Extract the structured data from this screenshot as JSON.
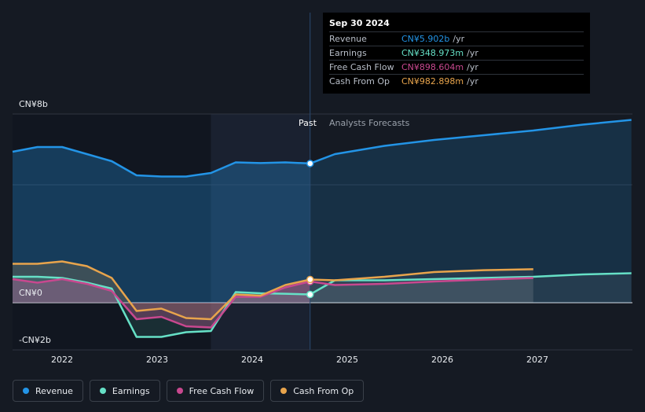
{
  "chart_data": {
    "type": "line",
    "x": [
      2021.75,
      2022.0,
      2022.25,
      2022.5,
      2022.75,
      2023.0,
      2023.25,
      2023.5,
      2023.75,
      2024.0,
      2024.25,
      2024.5,
      2024.75
    ],
    "series": [
      {
        "name": "Revenue",
        "color": "#2394e6",
        "values": [
          6.4,
          6.6,
          6.6,
          6.3,
          6.0,
          5.4,
          5.35,
          5.35,
          5.5,
          5.95,
          5.92,
          5.95,
          5.902
        ]
      },
      {
        "name": "Earnings",
        "color": "#66e0c6",
        "values": [
          1.1,
          1.1,
          1.05,
          0.85,
          0.6,
          -1.45,
          -1.45,
          -1.25,
          -1.2,
          0.45,
          0.4,
          0.38,
          0.349
        ]
      },
      {
        "name": "Free Cash Flow",
        "color": "#c8488f",
        "values": [
          1.0,
          0.85,
          1.0,
          0.8,
          0.5,
          -0.7,
          -0.6,
          -1.0,
          -1.05,
          0.25,
          0.25,
          0.65,
          0.899
        ]
      },
      {
        "name": "Cash From Op",
        "color": "#e8a44c",
        "values": [
          1.65,
          1.65,
          1.75,
          1.55,
          1.05,
          -0.35,
          -0.25,
          -0.65,
          -0.7,
          0.35,
          0.3,
          0.75,
          0.983
        ]
      }
    ],
    "forecast": {
      "x": [
        2024.75,
        2025.0,
        2025.5,
        2026.0,
        2026.5,
        2027.0,
        2027.5,
        2027.99
      ],
      "series": [
        {
          "name": "Revenue",
          "values": [
            5.902,
            6.3,
            6.65,
            6.9,
            7.1,
            7.3,
            7.55,
            7.75
          ]
        },
        {
          "name": "Earnings",
          "values": [
            0.349,
            0.95,
            0.95,
            1.0,
            1.05,
            1.1,
            1.2,
            1.25
          ]
        },
        {
          "name": "Free Cash Flow",
          "values": [
            0.899,
            0.75,
            0.8,
            0.9,
            0.98,
            1.05,
            null,
            null
          ]
        },
        {
          "name": "Cash From Op",
          "values": [
            0.983,
            0.95,
            1.1,
            1.3,
            1.38,
            1.42,
            null,
            null
          ]
        }
      ]
    },
    "ylim": [
      -2,
      8
    ],
    "yticks": [
      {
        "value": 8,
        "label": "CN¥8b"
      },
      {
        "value": 0,
        "label": "CN¥0"
      },
      {
        "value": -2,
        "label": "-CN¥2b"
      }
    ],
    "xticks": [
      {
        "value": 2022,
        "label": "2022"
      },
      {
        "value": 2023,
        "label": "2023"
      },
      {
        "value": 2024,
        "label": "2024"
      },
      {
        "value": 2025,
        "label": "2025"
      },
      {
        "value": 2026,
        "label": "2026"
      },
      {
        "value": 2027,
        "label": "2027"
      }
    ],
    "xlim": [
      2021.75,
      2028.0
    ],
    "divider_x": 2024.75,
    "highlight_start": 2023.75,
    "past_label": "Past",
    "forecast_label": "Analysts Forecasts",
    "grid": true
  },
  "tooltip": {
    "date": "Sep 30 2024",
    "rows": [
      {
        "name": "Revenue",
        "value": "CN¥5.902b",
        "unit": "/yr",
        "color": "#2394e6"
      },
      {
        "name": "Earnings",
        "value": "CN¥348.973m",
        "unit": "/yr",
        "color": "#66e0c6"
      },
      {
        "name": "Free Cash Flow",
        "value": "CN¥898.604m",
        "unit": "/yr",
        "color": "#c8488f"
      },
      {
        "name": "Cash From Op",
        "value": "CN¥982.898m",
        "unit": "/yr",
        "color": "#e8a44c"
      }
    ]
  },
  "legend": [
    {
      "label": "Revenue",
      "color": "#2394e6"
    },
    {
      "label": "Earnings",
      "color": "#66e0c6"
    },
    {
      "label": "Free Cash Flow",
      "color": "#c8488f"
    },
    {
      "label": "Cash From Op",
      "color": "#e8a44c"
    }
  ]
}
